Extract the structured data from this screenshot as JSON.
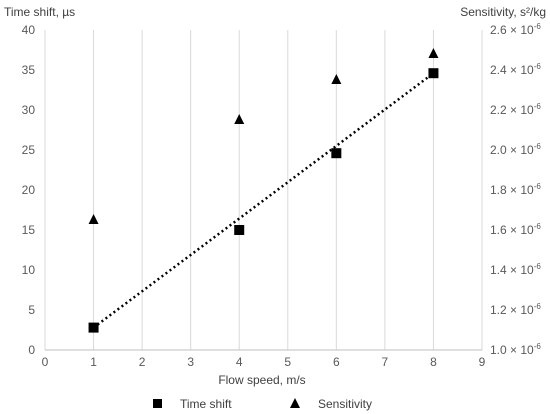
{
  "chart_data": {
    "type": "scatter",
    "x_label": "Flow speed, m/s",
    "y_label_left": "Time shift, µs",
    "y_label_right": "Sensitivity, s²/kg",
    "x_range": [
      0,
      9
    ],
    "x_ticks": [
      "0",
      "1",
      "2",
      "3",
      "4",
      "5",
      "6",
      "7",
      "8",
      "9"
    ],
    "y_left_range": [
      0,
      40
    ],
    "y_left_ticks": [
      "0",
      "5",
      "10",
      "15",
      "20",
      "25",
      "30",
      "35",
      "40"
    ],
    "y_right_range": [
      1.0,
      2.6
    ],
    "y_right_tick_values": [
      1.0,
      1.2,
      1.4,
      1.6,
      1.8,
      2.0,
      2.2,
      2.4,
      2.6
    ],
    "y_right_ticks": [
      "1.0 × 10",
      "1.2 × 10",
      "1.4 × 10",
      "1.6 × 10",
      "1.8 × 10",
      "2.0 × 10",
      "2.2 × 10",
      "2.4 × 10",
      "2.6 × 10"
    ],
    "y_right_tick_exponent": "-6",
    "y_right_unit_scale": "1e-6",
    "grid": "vertical",
    "legend_position": "bottom",
    "series": [
      {
        "name": "Time shift",
        "marker": "square",
        "axis": "left",
        "x": [
          1,
          4,
          6,
          8
        ],
        "y": [
          2.8,
          15.0,
          24.6,
          34.6
        ]
      },
      {
        "name": "Sensitivity",
        "marker": "triangle",
        "axis": "right",
        "x": [
          1,
          4,
          6,
          8
        ],
        "y": [
          1.65,
          2.15,
          2.35,
          2.48
        ]
      }
    ],
    "trendline": {
      "series": "Time shift",
      "style": "dotted",
      "x": [
        1,
        8
      ],
      "y": [
        2.8,
        34.6
      ]
    }
  }
}
